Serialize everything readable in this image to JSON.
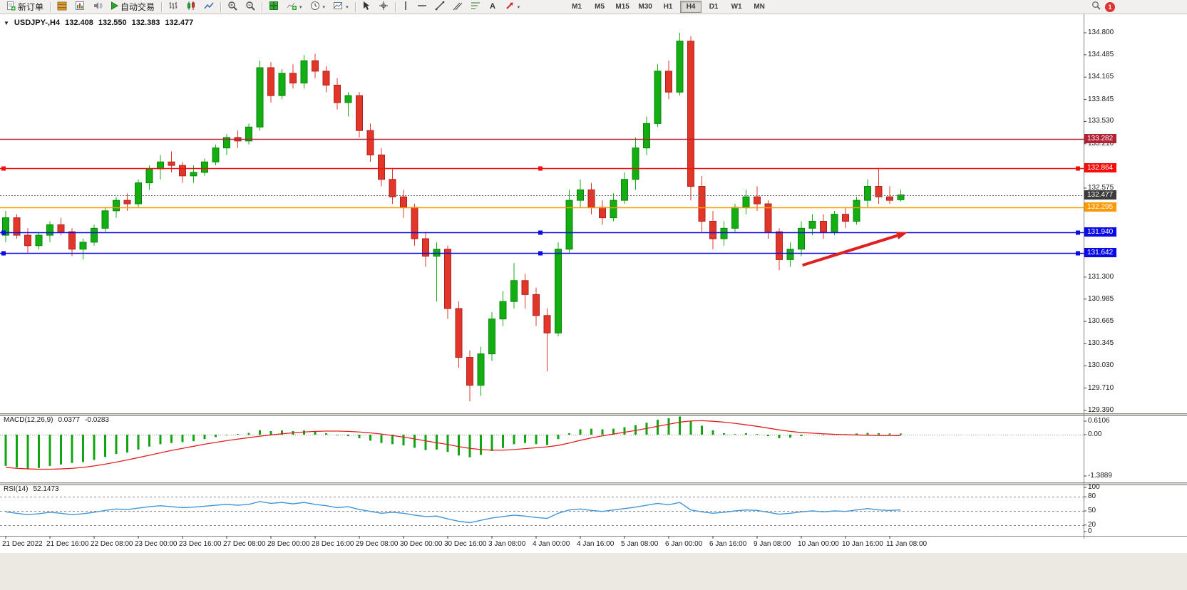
{
  "toolbar": {
    "new_order_label": "新订单",
    "autotrading_label": "自动交易",
    "timeframes": [
      "M1",
      "M5",
      "M15",
      "M30",
      "H1",
      "H4",
      "D1",
      "W1",
      "MN"
    ],
    "active_timeframe": "H4",
    "notification_count": "1"
  },
  "chart_data": {
    "type": "candlestick",
    "symbol": "USDJPY-",
    "timeframe": "H4",
    "title": "USDJPY-,H4",
    "ohlc": {
      "open": "132.408",
      "high": "132.550",
      "low": "132.383",
      "close": "132.477"
    },
    "y_range": [
      129.39,
      134.8
    ],
    "y_axis_ticks": [
      "134.800",
      "134.485",
      "134.165",
      "133.845",
      "133.530",
      "133.210",
      "132.575",
      "131.300",
      "130.985",
      "130.665",
      "130.345",
      "130.030",
      "129.710",
      "129.390"
    ],
    "x_label_step": 4,
    "x_labels": [
      "21 Dec 2022",
      "21 Dec 16:00",
      "22 Dec 08:00",
      "23 Dec 00:00",
      "23 Dec 16:00",
      "27 Dec 08:00",
      "28 Dec 00:00",
      "28 Dec 16:00",
      "29 Dec 08:00",
      "30 Dec 00:00",
      "30 Dec 16:00",
      "3 Jan 08:00",
      "4 Jan 00:00",
      "4 Jan 16:00",
      "5 Jan 08:00",
      "6 Jan 00:00",
      "6 Jan 16:00",
      "9 Jan 08:00",
      "10 Jan 00:00",
      "10 Jan 16:00",
      "11 Jan 08:00"
    ],
    "up_color": "#12AE12",
    "up_border": "#0B840B",
    "down_color": "#E2362B",
    "down_border": "#AE241C",
    "candles": [
      [
        131.9,
        132.25,
        131.8,
        132.15
      ],
      [
        132.15,
        132.2,
        131.85,
        131.9
      ],
      [
        131.9,
        132.0,
        131.65,
        131.75
      ],
      [
        131.75,
        131.95,
        131.7,
        131.9
      ],
      [
        131.9,
        132.1,
        131.8,
        132.05
      ],
      [
        132.05,
        132.15,
        131.9,
        131.95
      ],
      [
        131.95,
        132.0,
        131.6,
        131.7
      ],
      [
        131.7,
        131.85,
        131.55,
        131.8
      ],
      [
        131.8,
        132.05,
        131.75,
        132.0
      ],
      [
        132.0,
        132.3,
        131.95,
        132.25
      ],
      [
        132.25,
        132.45,
        132.15,
        132.4
      ],
      [
        132.4,
        132.5,
        132.25,
        132.35
      ],
      [
        132.35,
        132.7,
        132.3,
        132.65
      ],
      [
        132.65,
        132.9,
        132.55,
        132.85
      ],
      [
        132.85,
        133.05,
        132.7,
        132.95
      ],
      [
        132.95,
        133.1,
        132.8,
        132.9
      ],
      [
        132.9,
        132.95,
        132.65,
        132.75
      ],
      [
        132.75,
        132.9,
        132.65,
        132.8
      ],
      [
        132.8,
        133.0,
        132.75,
        132.95
      ],
      [
        132.95,
        133.2,
        132.9,
        133.15
      ],
      [
        133.15,
        133.35,
        133.05,
        133.3
      ],
      [
        133.3,
        133.4,
        133.15,
        133.25
      ],
      [
        133.25,
        133.5,
        133.2,
        133.45
      ],
      [
        133.45,
        134.4,
        133.4,
        134.3
      ],
      [
        134.3,
        134.38,
        133.8,
        133.9
      ],
      [
        133.9,
        134.28,
        133.85,
        134.22
      ],
      [
        134.22,
        134.35,
        134.0,
        134.08
      ],
      [
        134.08,
        134.48,
        134.0,
        134.4
      ],
      [
        134.4,
        134.5,
        134.15,
        134.25
      ],
      [
        134.25,
        134.32,
        133.95,
        134.05
      ],
      [
        134.05,
        134.15,
        133.7,
        133.8
      ],
      [
        133.8,
        133.95,
        133.6,
        133.9
      ],
      [
        133.9,
        133.95,
        133.3,
        133.4
      ],
      [
        133.4,
        133.5,
        132.95,
        133.05
      ],
      [
        133.05,
        133.15,
        132.6,
        132.7
      ],
      [
        132.7,
        132.85,
        132.35,
        132.45
      ],
      [
        132.45,
        132.55,
        132.15,
        132.3
      ],
      [
        132.3,
        132.35,
        131.75,
        131.85
      ],
      [
        131.85,
        131.95,
        131.45,
        131.6
      ],
      [
        131.6,
        131.8,
        130.95,
        131.7
      ],
      [
        131.7,
        131.75,
        130.7,
        130.85
      ],
      [
        130.85,
        130.95,
        130.0,
        130.15
      ],
      [
        130.15,
        130.25,
        129.52,
        129.75
      ],
      [
        129.75,
        130.3,
        129.6,
        130.2
      ],
      [
        130.2,
        130.8,
        130.1,
        130.7
      ],
      [
        130.7,
        131.1,
        130.6,
        130.95
      ],
      [
        130.95,
        131.5,
        130.85,
        131.25
      ],
      [
        131.25,
        131.35,
        130.85,
        131.05
      ],
      [
        131.05,
        131.15,
        130.6,
        130.75
      ],
      [
        130.75,
        130.85,
        129.95,
        130.5
      ],
      [
        130.5,
        131.8,
        130.45,
        131.7
      ],
      [
        131.7,
        132.55,
        131.65,
        132.4
      ],
      [
        132.4,
        132.7,
        132.3,
        132.55
      ],
      [
        132.55,
        132.65,
        132.2,
        132.3
      ],
      [
        132.3,
        132.4,
        132.05,
        132.15
      ],
      [
        132.15,
        132.5,
        132.1,
        132.4
      ],
      [
        132.4,
        132.8,
        132.35,
        132.7
      ],
      [
        132.7,
        133.3,
        132.55,
        133.15
      ],
      [
        133.15,
        133.6,
        133.05,
        133.5
      ],
      [
        133.5,
        134.35,
        133.45,
        134.25
      ],
      [
        134.25,
        134.4,
        133.85,
        133.95
      ],
      [
        133.95,
        134.8,
        133.9,
        134.68
      ],
      [
        134.68,
        134.75,
        132.4,
        132.6
      ],
      [
        132.6,
        132.75,
        131.95,
        132.1
      ],
      [
        132.1,
        132.25,
        131.7,
        131.85
      ],
      [
        131.85,
        132.1,
        131.75,
        132.0
      ],
      [
        132.0,
        132.35,
        131.95,
        132.3
      ],
      [
        132.3,
        132.55,
        132.2,
        132.45
      ],
      [
        132.45,
        132.6,
        132.25,
        132.35
      ],
      [
        132.35,
        132.4,
        131.85,
        131.95
      ],
      [
        131.95,
        132.0,
        131.4,
        131.55
      ],
      [
        131.55,
        131.8,
        131.45,
        131.7
      ],
      [
        131.7,
        132.1,
        131.6,
        132.0
      ],
      [
        132.0,
        132.2,
        131.9,
        132.1
      ],
      [
        132.1,
        132.2,
        131.85,
        131.95
      ],
      [
        131.95,
        132.25,
        131.9,
        132.2
      ],
      [
        132.2,
        132.3,
        132.0,
        132.1
      ],
      [
        132.1,
        132.45,
        132.05,
        132.4
      ],
      [
        132.4,
        132.7,
        132.3,
        132.6
      ],
      [
        132.6,
        132.86,
        132.35,
        132.45
      ],
      [
        132.45,
        132.6,
        132.35,
        132.4
      ],
      [
        132.408,
        132.55,
        132.383,
        132.477
      ]
    ],
    "horizontal_lines": [
      {
        "name": "resistance-line-133282",
        "price": "133.282",
        "value": 133.282,
        "color": "#B22235",
        "selected": false
      },
      {
        "name": "resistance-line-132864",
        "price": "132.864",
        "value": 132.864,
        "color": "#F50C0C",
        "selected": true
      },
      {
        "name": "current-price-line",
        "price": "132.477",
        "value": 132.477,
        "color": "#6A6A6A",
        "badge_color": "#3C3C3C",
        "style": "dotted",
        "selected": false
      },
      {
        "name": "pivot-line-132295",
        "price": "132.295",
        "value": 132.295,
        "color": "#FF9900",
        "selected": false
      },
      {
        "name": "support-line-131940",
        "price": "131.940",
        "value": 131.94,
        "color": "#0A0AE6",
        "selected": true
      },
      {
        "name": "support-line-131642",
        "price": "131.642",
        "value": 131.642,
        "color": "#0A0AE6",
        "selected": true
      }
    ],
    "annotations": [
      {
        "type": "arrow",
        "name": "trend-arrow",
        "color": "#E01F1F",
        "width": 4,
        "from": {
          "candle": 72.1,
          "price": 131.47
        },
        "to": {
          "candle": 81.6,
          "price": 131.94
        }
      }
    ],
    "indicators": {
      "macd": {
        "label": "MACD(12,26,9)",
        "main_value": "0.0377",
        "signal_value": "-0.0283",
        "axis_labels": [
          "0.6106",
          "0.00",
          "-1.3889"
        ],
        "histogram_color": "#11A611",
        "signal_color": "#E02020",
        "histogram": [
          -1.05,
          -1.1,
          -1.15,
          -1.12,
          -1.05,
          -1.0,
          -0.95,
          -0.92,
          -0.85,
          -0.75,
          -0.65,
          -0.6,
          -0.5,
          -0.4,
          -0.32,
          -0.28,
          -0.25,
          -0.22,
          -0.15,
          -0.08,
          -0.02,
          0.02,
          0.06,
          0.15,
          0.12,
          0.14,
          0.12,
          0.14,
          0.1,
          0.05,
          -0.02,
          -0.05,
          -0.12,
          -0.2,
          -0.28,
          -0.32,
          -0.36,
          -0.44,
          -0.52,
          -0.5,
          -0.58,
          -0.7,
          -0.76,
          -0.68,
          -0.55,
          -0.45,
          -0.32,
          -0.28,
          -0.32,
          -0.35,
          -0.15,
          0.05,
          0.18,
          0.2,
          0.18,
          0.2,
          0.25,
          0.32,
          0.4,
          0.5,
          0.55,
          0.61,
          0.45,
          0.3,
          0.15,
          0.05,
          0.02,
          0.05,
          0.02,
          -0.05,
          -0.12,
          -0.1,
          -0.05,
          0.0,
          -0.02,
          0.0,
          0.02,
          0.04,
          0.06,
          0.05,
          0.04,
          0.0377
        ],
        "signal": [
          -1.1,
          -1.13,
          -1.15,
          -1.16,
          -1.16,
          -1.15,
          -1.13,
          -1.1,
          -1.05,
          -0.99,
          -0.92,
          -0.85,
          -0.77,
          -0.69,
          -0.61,
          -0.53,
          -0.46,
          -0.39,
          -0.32,
          -0.26,
          -0.2,
          -0.15,
          -0.1,
          -0.05,
          -0.01,
          0.03,
          0.06,
          0.09,
          0.11,
          0.12,
          0.12,
          0.11,
          0.09,
          0.06,
          0.02,
          -0.03,
          -0.08,
          -0.14,
          -0.21,
          -0.27,
          -0.33,
          -0.4,
          -0.46,
          -0.5,
          -0.52,
          -0.52,
          -0.5,
          -0.47,
          -0.44,
          -0.41,
          -0.36,
          -0.28,
          -0.19,
          -0.11,
          -0.04,
          0.02,
          0.08,
          0.14,
          0.21,
          0.28,
          0.35,
          0.42,
          0.46,
          0.47,
          0.45,
          0.42,
          0.38,
          0.33,
          0.28,
          0.22,
          0.16,
          0.11,
          0.07,
          0.05,
          0.03,
          0.01,
          0.0,
          -0.01,
          -0.02,
          -0.03,
          -0.03,
          -0.0283
        ]
      },
      "rsi": {
        "label": "RSI(14)",
        "value": "52.1473",
        "axis_labels": [
          "100",
          "80",
          "50",
          "20",
          "0"
        ],
        "levels": [
          80,
          50,
          20
        ],
        "line_color": "#3F95D8",
        "values": [
          48,
          45,
          42,
          44,
          47,
          45,
          42,
          44,
          47,
          51,
          54,
          53,
          56,
          59,
          61,
          59,
          57,
          58,
          60,
          62,
          64,
          62,
          64,
          70,
          66,
          68,
          65,
          68,
          64,
          61,
          57,
          59,
          53,
          49,
          45,
          47,
          45,
          41,
          38,
          39,
          33,
          28,
          25,
          30,
          35,
          38,
          41,
          39,
          36,
          34,
          45,
          52,
          54,
          51,
          49,
          52,
          55,
          58,
          62,
          66,
          63,
          68,
          52,
          48,
          45,
          47,
          50,
          52,
          51,
          47,
          43,
          45,
          48,
          50,
          48,
          50,
          49,
          52,
          55,
          52,
          51,
          52.1473
        ]
      }
    }
  }
}
